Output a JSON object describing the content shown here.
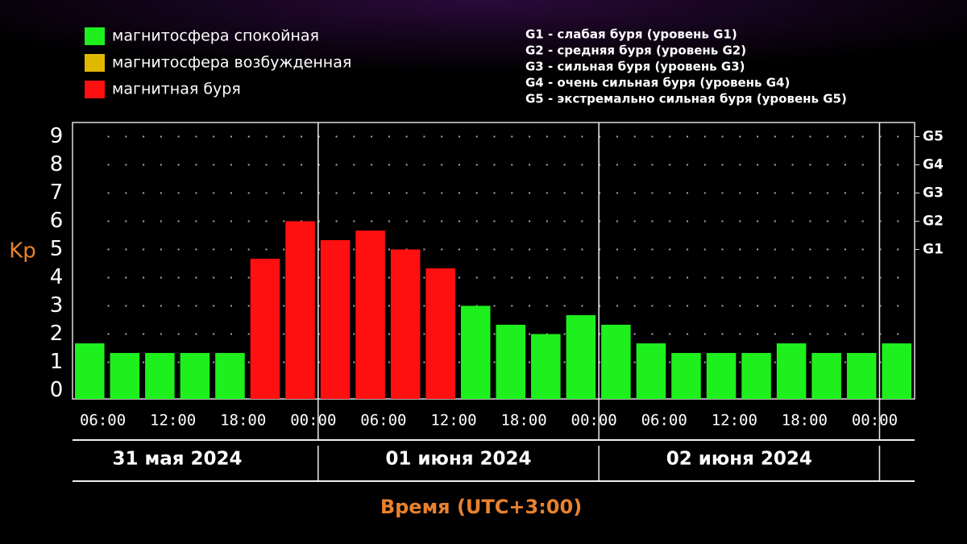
{
  "chart_data": {
    "type": "bar",
    "legend": [
      {
        "label": "магнитосфера спокойная",
        "color": "#1ef01e"
      },
      {
        "label": "магнитосфера возбужденная",
        "color": "#e0b800"
      },
      {
        "label": "магнитная буря",
        "color": "#ff1010"
      }
    ],
    "storm_levels": [
      "G1 - слабая буря (уровень G1)",
      "G2 - средняя буря (уровень G2)",
      "G3 - сильная буря (уровень G3)",
      "G4 - очень сильная буря (уровень G4)",
      "G5 - экстремально сильная буря (уровень G5)"
    ],
    "ylabel": "Kp",
    "xlabel": "Время (UTC+3:00)",
    "values": [
      1.67,
      1.33,
      1.33,
      1.33,
      1.33,
      4.67,
      6,
      5.33,
      5.67,
      5,
      4.33,
      3,
      2.33,
      2,
      2.67,
      2.33,
      1.67,
      1.33,
      1.33,
      1.33,
      1.67,
      1.33,
      1.33,
      1.67
    ],
    "colors": [
      "#1ef01e",
      "#1ef01e",
      "#1ef01e",
      "#1ef01e",
      "#1ef01e",
      "#ff1010",
      "#ff1010",
      "#ff1010",
      "#ff1010",
      "#ff1010",
      "#ff1010",
      "#1ef01e",
      "#1ef01e",
      "#1ef01e",
      "#1ef01e",
      "#1ef01e",
      "#1ef01e",
      "#1ef01e",
      "#1ef01e",
      "#1ef01e",
      "#1ef01e",
      "#1ef01e",
      "#1ef01e",
      "#1ef01e"
    ],
    "ylim": [
      -0.3,
      9.5
    ],
    "yticks": [
      0,
      1,
      2,
      3,
      4,
      5,
      6,
      7,
      8,
      9
    ],
    "y2ticks": [
      {
        "value": 5,
        "label": "G1"
      },
      {
        "value": 6,
        "label": "G2"
      },
      {
        "value": 7,
        "label": "G3"
      },
      {
        "value": 8,
        "label": "G4"
      },
      {
        "value": 9,
        "label": "G5"
      }
    ],
    "xtick_labels": [
      "06:00",
      "12:00",
      "18:00",
      "00:00",
      "06:00",
      "12:00",
      "18:00",
      "00:00",
      "06:00",
      "12:00",
      "18:00",
      "00:00"
    ],
    "days": [
      "31 мая 2024",
      "01 июня 2024",
      "02 июня 2024"
    ],
    "grid": true
  }
}
